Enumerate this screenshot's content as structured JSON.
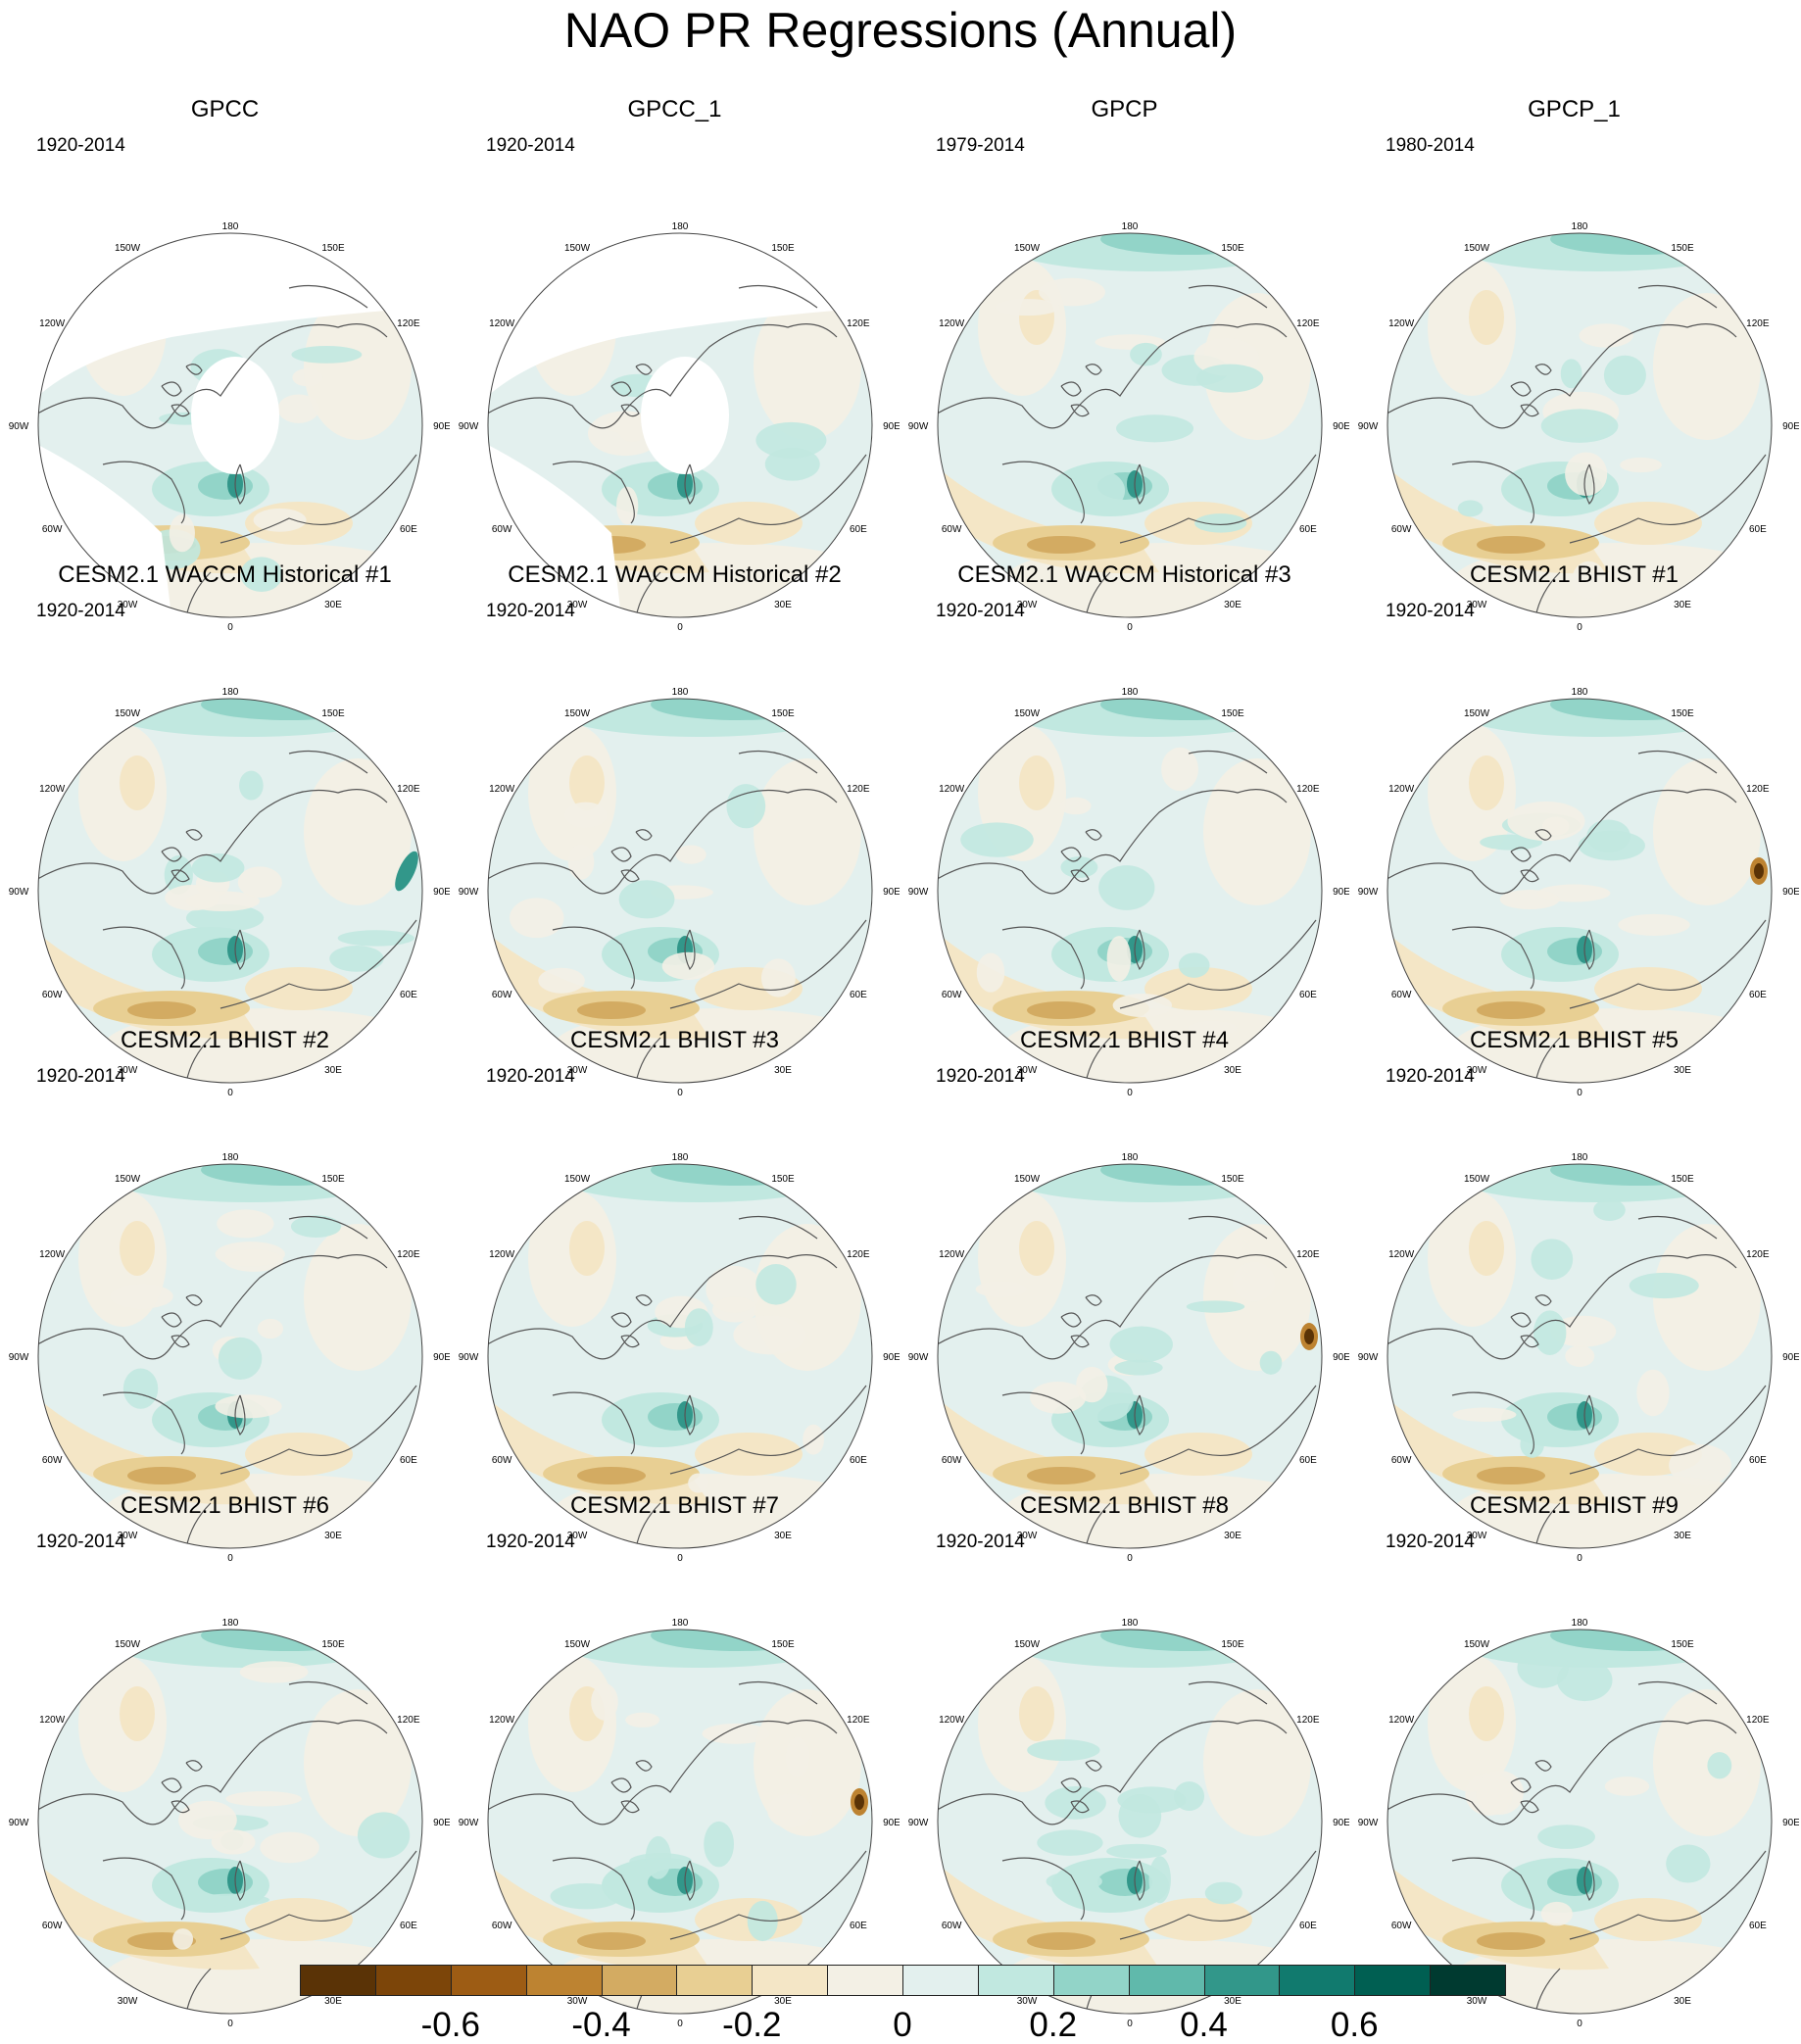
{
  "title": "NAO PR Regressions (Annual)",
  "lon_labels": {
    "top": "180",
    "bottom": "0",
    "left": [
      "150W",
      "120W",
      "90W",
      "60W",
      "30W"
    ],
    "right": [
      "150E",
      "120E",
      "90E",
      "60E",
      "30E"
    ]
  },
  "panels": [
    {
      "title": "GPCC",
      "years": "1920-2014",
      "masked": true
    },
    {
      "title": "GPCC_1",
      "years": "1920-2014",
      "masked": true
    },
    {
      "title": "GPCP",
      "years": "1979-2014",
      "masked": false
    },
    {
      "title": "GPCP_1",
      "years": "1980-2014",
      "masked": false
    },
    {
      "title": "CESM2.1 WACCM Historical #1",
      "years": "1920-2014",
      "masked": false
    },
    {
      "title": "CESM2.1 WACCM Historical #2",
      "years": "1920-2014",
      "masked": false
    },
    {
      "title": "CESM2.1 WACCM Historical #3",
      "years": "1920-2014",
      "masked": false
    },
    {
      "title": "CESM2.1 BHIST #1",
      "years": "1920-2014",
      "masked": false
    },
    {
      "title": "CESM2.1 BHIST #2",
      "years": "1920-2014",
      "masked": false
    },
    {
      "title": "CESM2.1 BHIST #3",
      "years": "1920-2014",
      "masked": false
    },
    {
      "title": "CESM2.1 BHIST #4",
      "years": "1920-2014",
      "masked": false
    },
    {
      "title": "CESM2.1 BHIST #5",
      "years": "1920-2014",
      "masked": false
    },
    {
      "title": "CESM2.1 BHIST #6",
      "years": "1920-2014",
      "masked": false
    },
    {
      "title": "CESM2.1 BHIST #7",
      "years": "1920-2014",
      "masked": false
    },
    {
      "title": "CESM2.1 BHIST #8",
      "years": "1920-2014",
      "masked": false
    },
    {
      "title": "CESM2.1 BHIST #9",
      "years": "1920-2014",
      "masked": false
    }
  ],
  "colorbar": {
    "colors": [
      "#5a3306",
      "#7c4509",
      "#9d5c14",
      "#bd8331",
      "#d3ab62",
      "#e8cf93",
      "#f4e6c6",
      "#f3f0e5",
      "#e3f0ee",
      "#c1e8e0",
      "#92d4c8",
      "#60b9ab",
      "#32978a",
      "#117a6e",
      "#005f52",
      "#003a30"
    ],
    "ticks": [
      "-0.6",
      "-0.4",
      "-0.2",
      "0",
      "0.2",
      "0.4",
      "0.6"
    ]
  }
}
